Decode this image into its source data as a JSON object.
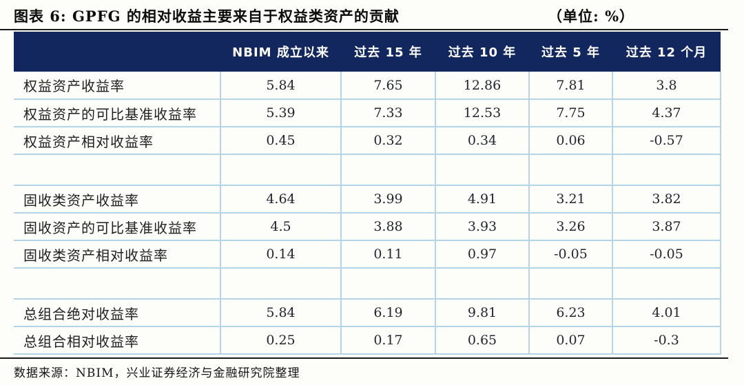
{
  "title": {
    "label": "图表 6: GPFG 的相对收益主要来自于权益类资产的贡献",
    "unit": "（单位: %）"
  },
  "table": {
    "columns": [
      "",
      "NBIM 成立以来",
      "过去 15 年",
      "过去 10 年",
      "过去 5 年",
      "过去 12 个月"
    ],
    "rows": [
      {
        "label": "权益资产收益率",
        "values": [
          "5.84",
          "7.65",
          "12.86",
          "7.81",
          "3.8"
        ],
        "spacer": false
      },
      {
        "label": "权益资产的可比基准收益率",
        "values": [
          "5.39",
          "7.33",
          "12.53",
          "7.75",
          "4.37"
        ],
        "spacer": false
      },
      {
        "label": "权益资产相对收益率",
        "values": [
          "0.45",
          "0.32",
          "0.34",
          "0.06",
          "-0.57"
        ],
        "spacer": false
      },
      {
        "label": "",
        "values": [
          "",
          "",
          "",
          "",
          ""
        ],
        "spacer": true
      },
      {
        "label": "固收类资产收益率",
        "values": [
          "4.64",
          "3.99",
          "4.91",
          "3.21",
          "3.82"
        ],
        "spacer": false
      },
      {
        "label": "固收资产的可比基准收益率",
        "values": [
          "4.5",
          "3.88",
          "3.93",
          "3.26",
          "3.87"
        ],
        "spacer": false
      },
      {
        "label": "固收类资产相对收益率",
        "values": [
          "0.14",
          "0.11",
          "0.97",
          "-0.05",
          "-0.05"
        ],
        "spacer": false
      },
      {
        "label": "",
        "values": [
          "",
          "",
          "",
          "",
          ""
        ],
        "spacer": true
      },
      {
        "label": "总组合绝对收益率",
        "values": [
          "5.84",
          "6.19",
          "9.81",
          "6.23",
          "4.01"
        ],
        "spacer": false
      },
      {
        "label": "总组合相对收益率",
        "values": [
          "0.25",
          "0.17",
          "0.65",
          "0.07",
          "-0.3"
        ],
        "spacer": false
      }
    ]
  },
  "source": "数据来源：NBIM，兴业证券经济与金融研究院整理",
  "colors": {
    "header_bg": "#12275d",
    "grid_border": "#b2d4e6",
    "rule": "#191919",
    "header_text": "#ffffff"
  },
  "chart_data": {
    "type": "table",
    "title": "图表 6: GPFG 的相对收益主要来自于权益类资产的贡献（单位: %）",
    "columns": [
      "NBIM 成立以来",
      "过去 15 年",
      "过去 10 年",
      "过去 5 年",
      "过去 12 个月"
    ],
    "rows": [
      {
        "label": "权益资产收益率",
        "values": [
          5.84,
          7.65,
          12.86,
          7.81,
          3.8
        ]
      },
      {
        "label": "权益资产的可比基准收益率",
        "values": [
          5.39,
          7.33,
          12.53,
          7.75,
          4.37
        ]
      },
      {
        "label": "权益资产相对收益率",
        "values": [
          0.45,
          0.32,
          0.34,
          0.06,
          -0.57
        ]
      },
      {
        "label": "固收类资产收益率",
        "values": [
          4.64,
          3.99,
          4.91,
          3.21,
          3.82
        ]
      },
      {
        "label": "固收资产的可比基准收益率",
        "values": [
          4.5,
          3.88,
          3.93,
          3.26,
          3.87
        ]
      },
      {
        "label": "固收类资产相对收益率",
        "values": [
          0.14,
          0.11,
          0.97,
          -0.05,
          -0.05
        ]
      },
      {
        "label": "总组合绝对收益率",
        "values": [
          5.84,
          6.19,
          9.81,
          6.23,
          4.01
        ]
      },
      {
        "label": "总组合相对收益率",
        "values": [
          0.25,
          0.17,
          0.65,
          0.07,
          -0.3
        ]
      }
    ],
    "source": "数据来源：NBIM，兴业证券经济与金融研究院整理"
  }
}
